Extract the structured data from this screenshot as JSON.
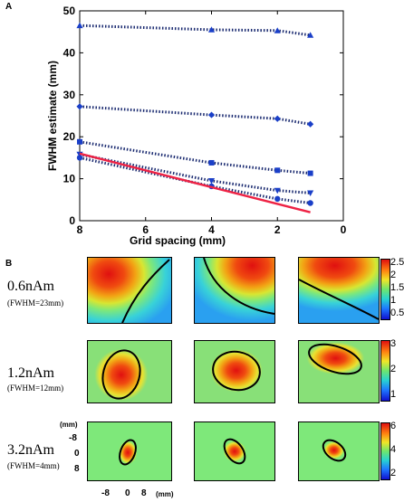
{
  "panel_a": {
    "label": "A",
    "chart_data": {
      "type": "line",
      "xlabel": "Grid spacing (mm)",
      "ylabel": "FWHM estimate (mm)",
      "xlim": [
        8,
        0
      ],
      "ylim": [
        0,
        50
      ],
      "xticks": [
        "8",
        "6",
        "4",
        "2",
        "0"
      ],
      "yticks": [
        "0",
        "10",
        "20",
        "30",
        "40",
        "50"
      ],
      "x": [
        8,
        4,
        2,
        1
      ],
      "series": [
        {
          "marker": "triangle-up",
          "style": "dotted",
          "values": [
            46.5,
            45.5,
            45.3,
            44.2
          ]
        },
        {
          "marker": "diamond",
          "style": "dotted",
          "values": [
            27.2,
            25.2,
            24.3,
            23.0
          ]
        },
        {
          "marker": "square",
          "style": "dotted",
          "values": [
            18.8,
            13.8,
            12.0,
            11.3
          ]
        },
        {
          "marker": "triangle-down",
          "style": "dotted",
          "values": [
            15.8,
            9.5,
            7.2,
            6.6
          ]
        },
        {
          "marker": "circle",
          "style": "dotted",
          "values": [
            15.0,
            8.2,
            5.2,
            4.2
          ]
        },
        {
          "marker": "none",
          "style": "solid",
          "color": "#ee2244",
          "values": [
            16.0,
            8.0,
            4.0,
            2.0
          ]
        }
      ],
      "marker_color": "#1a3fc8"
    }
  },
  "panel_b": {
    "label": "B",
    "rows": [
      {
        "title": "0.6nAm",
        "sub": "(FWHM=23mm)",
        "colorbar_ticks": [
          "2.5",
          "2",
          "1.5",
          "1",
          "0.5"
        ]
      },
      {
        "title": "1.2nAm",
        "sub": "(FWHM=12mm)",
        "colorbar_ticks": [
          "3",
          "2",
          "1"
        ]
      },
      {
        "title": "3.2nAm",
        "sub": "(FWHM=4mm)",
        "colorbar_ticks": [
          "6",
          "4",
          "2"
        ]
      }
    ],
    "y_unit": "(mm)",
    "y_ticks": [
      "-8",
      "0",
      "8"
    ],
    "x_ticks": [
      "-8",
      "0",
      "8"
    ],
    "x_unit": "(mm)"
  }
}
